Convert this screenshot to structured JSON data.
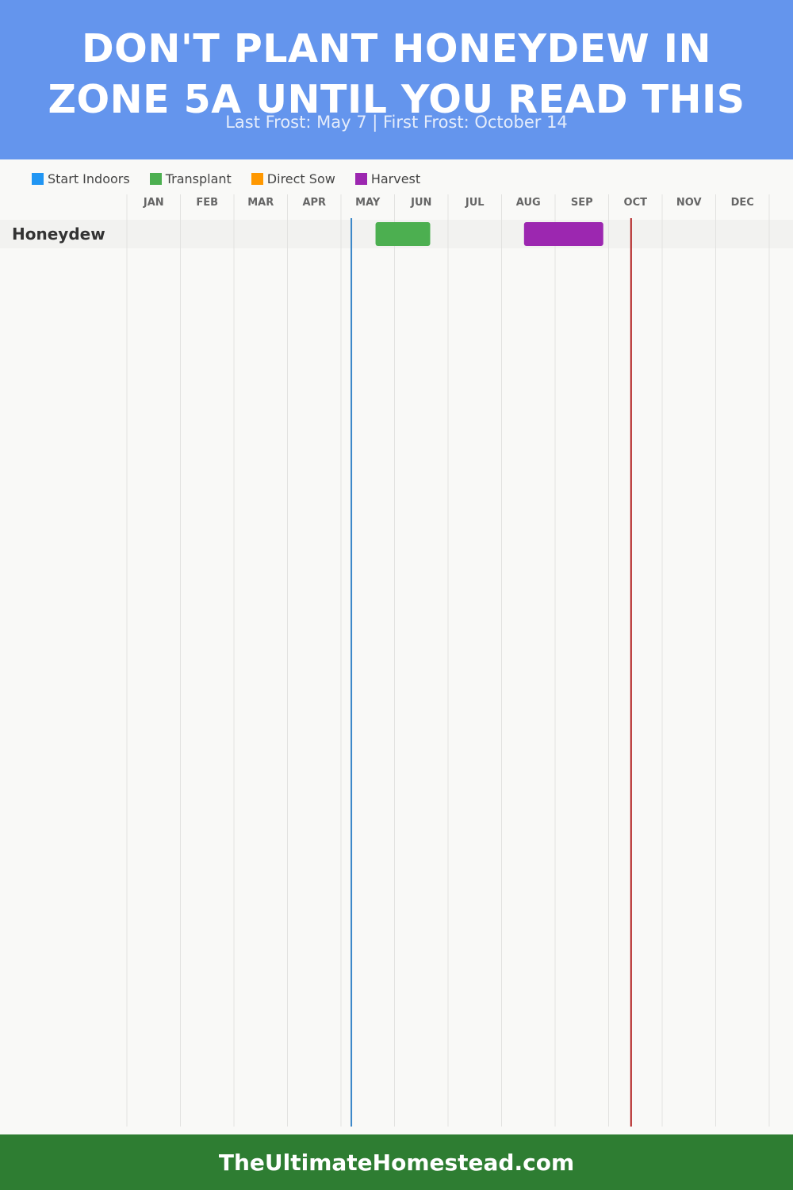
{
  "header": {
    "title_line1": "DON'T PLANT HONEYDEW IN",
    "title_line2": "ZONE 5A UNTIL YOU READ THIS",
    "subtitle": "Last Frost: May 7 | First Frost: October 14"
  },
  "legend": [
    {
      "label": "Start Indoors",
      "color": "#2196f3"
    },
    {
      "label": "Transplant",
      "color": "#4caf50"
    },
    {
      "label": "Direct Sow",
      "color": "#ff9800"
    },
    {
      "label": "Harvest",
      "color": "#9c27b0"
    }
  ],
  "chart_data": {
    "type": "gantt",
    "months": [
      "JAN",
      "FEB",
      "MAR",
      "APR",
      "MAY",
      "JUN",
      "JUL",
      "AUG",
      "SEP",
      "OCT",
      "NOV",
      "DEC"
    ],
    "crops": [
      {
        "name": "Honeydew",
        "periods": [
          {
            "phase": "Transplant",
            "start": "May 21",
            "end": "Jun 21"
          },
          {
            "phase": "Harvest",
            "start": "Aug 14",
            "end": "Sep 28"
          }
        ]
      }
    ],
    "last_frost": {
      "date": "May 7",
      "color": "#3a86c8"
    },
    "first_frost": {
      "date": "Oct 14",
      "color": "#b22222"
    }
  },
  "footer": {
    "text": "TheUltimateHomestead.com"
  }
}
